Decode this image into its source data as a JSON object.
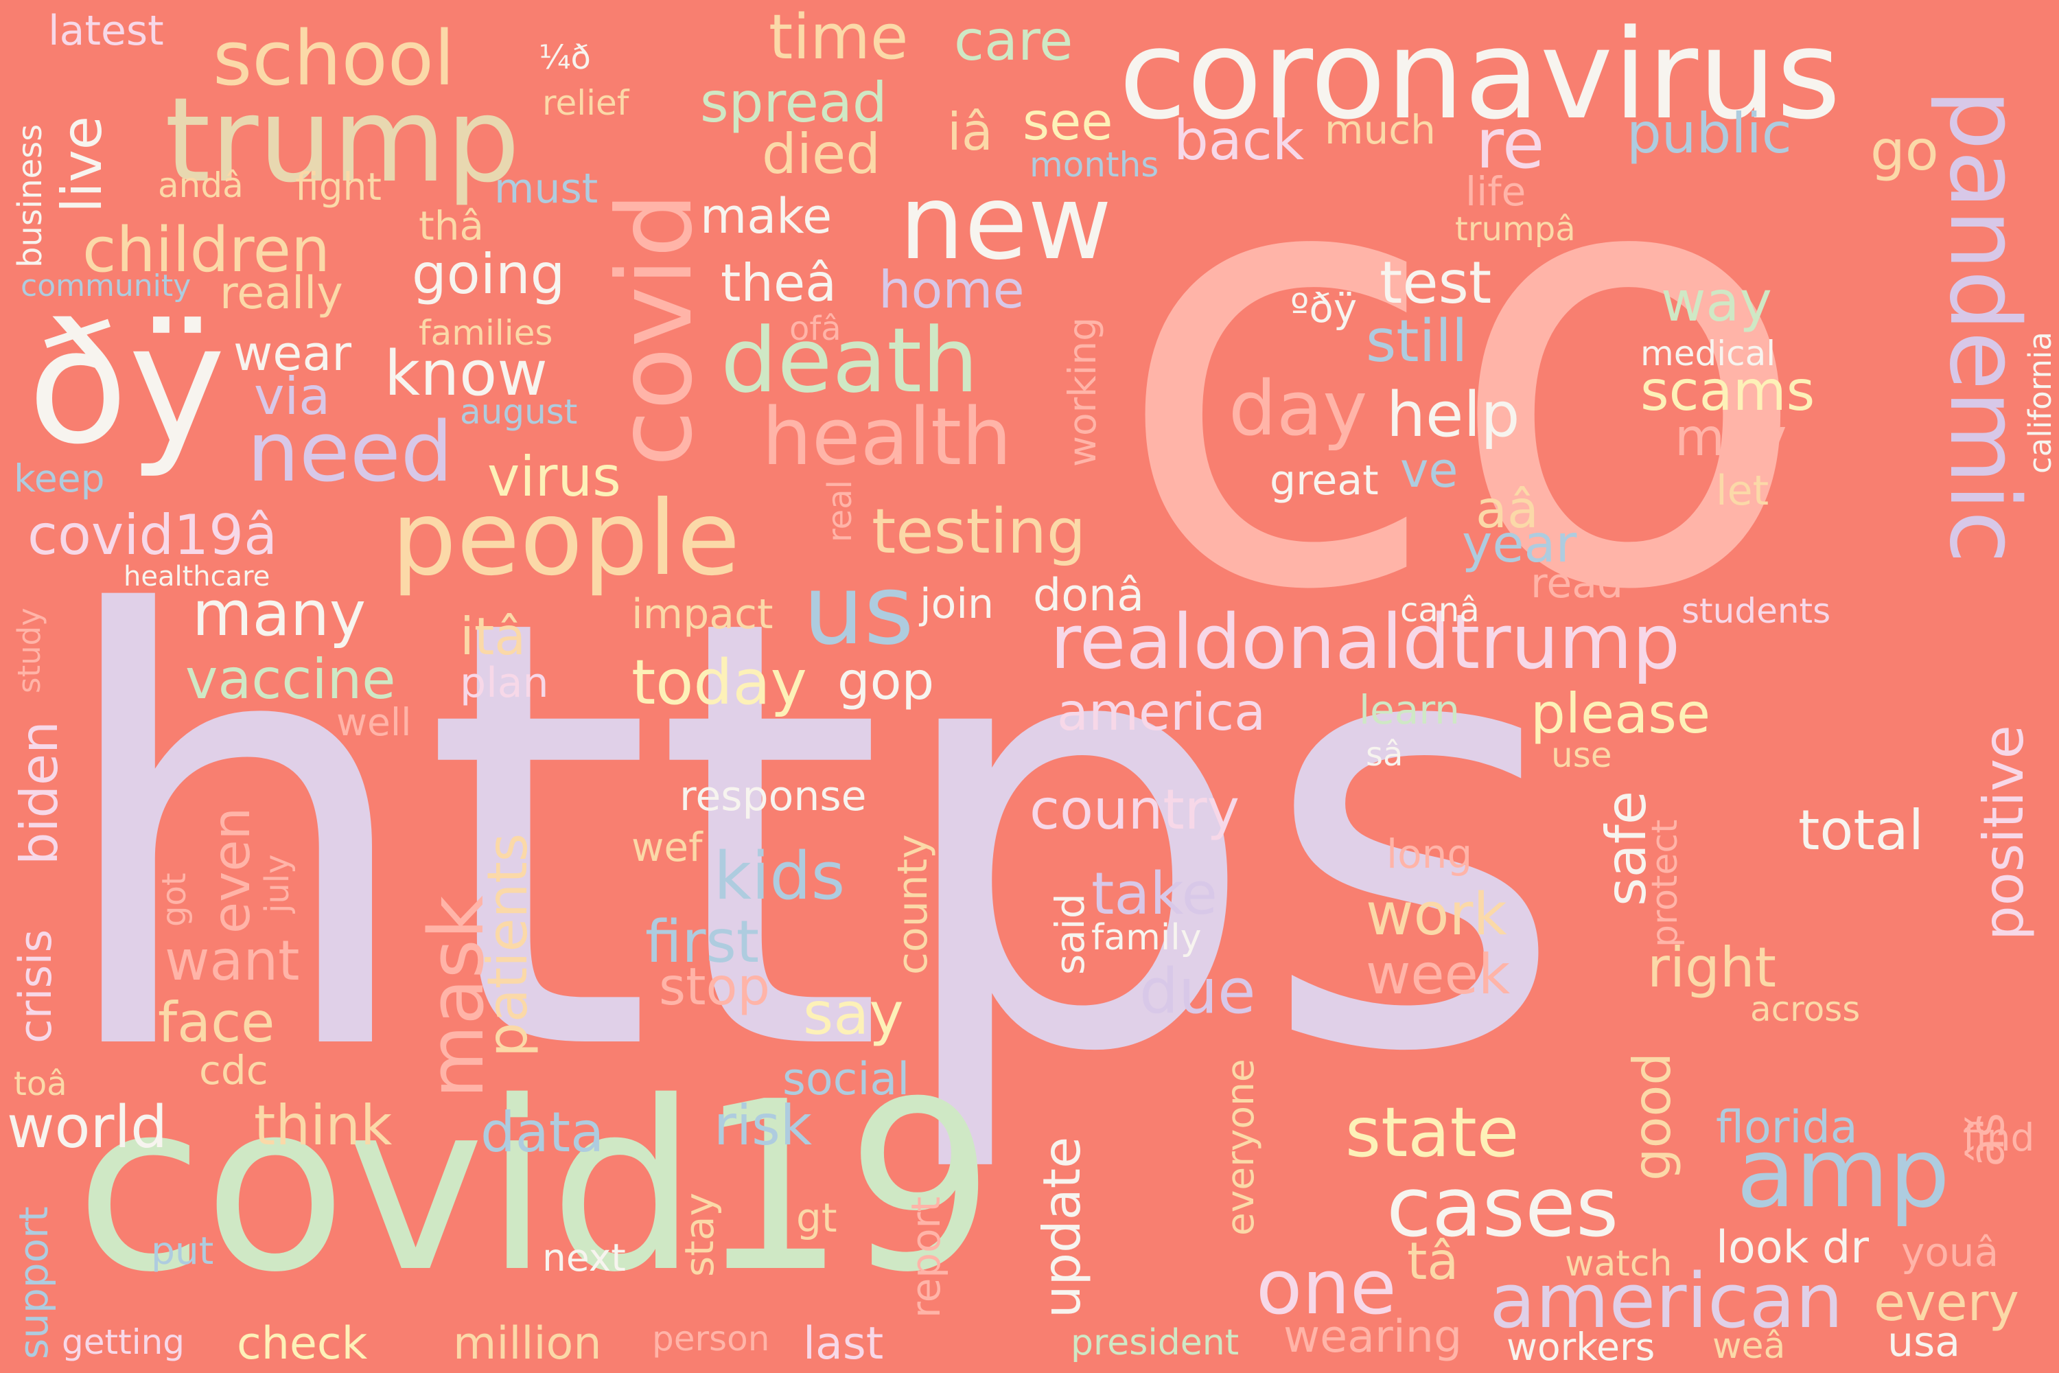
{
  "words": [
    {
      "text": "https",
      "color": "#e0d0e8"
    },
    {
      "text": "co",
      "color": "#ffb4a8"
    },
    {
      "text": "covid19",
      "color": "#cfe8c5"
    },
    {
      "text": "coronavirus",
      "color": "#f7f4ef"
    },
    {
      "text": "ðÿ",
      "color": "#f7f4ef"
    },
    {
      "text": "trump",
      "color": "#e8d8b0"
    },
    {
      "text": "school",
      "color": "#fbd9a8"
    },
    {
      "text": "new",
      "color": "#f7f4ef"
    },
    {
      "text": "covid",
      "color": "#ffb4a8"
    },
    {
      "text": "people",
      "color": "#fbd9a8"
    },
    {
      "text": "death",
      "color": "#cfe8c5"
    },
    {
      "text": "health",
      "color": "#ffb4a8"
    },
    {
      "text": "pandemic",
      "color": "#d8c8e8"
    },
    {
      "text": "realdonaldtrump",
      "color": "#f7d8e8"
    },
    {
      "text": "us",
      "color": "#aeccdf"
    },
    {
      "text": "amp",
      "color": "#aeccdf"
    },
    {
      "text": "cases",
      "color": "#f7f4ef"
    },
    {
      "text": "american",
      "color": "#e0d0e8"
    },
    {
      "text": "mask",
      "color": "#ffb4a8"
    },
    {
      "text": "need",
      "color": "#d8c8e8"
    },
    {
      "text": "children",
      "color": "#fbd9a8"
    },
    {
      "text": "many",
      "color": "#f7f4ef"
    },
    {
      "text": "vaccine",
      "color": "#cfe8c5"
    },
    {
      "text": "world",
      "color": "#f7f4ef"
    },
    {
      "text": "testing",
      "color": "#fbd9a8"
    },
    {
      "text": "today",
      "color": "#fdf1b8"
    },
    {
      "text": "know",
      "color": "#f7f4ef"
    },
    {
      "text": "kids",
      "color": "#aeccdf"
    },
    {
      "text": "state",
      "color": "#fdf1b8"
    },
    {
      "text": "one",
      "color": "#f7d8e8"
    },
    {
      "text": "covid19â",
      "color": "#f7d8e8"
    },
    {
      "text": "going",
      "color": "#f7f4ef"
    },
    {
      "text": "time",
      "color": "#fbd9a8"
    },
    {
      "text": "care",
      "color": "#cfe8c5"
    },
    {
      "text": "spread",
      "color": "#cfe8c5"
    },
    {
      "text": "died",
      "color": "#fbd9a8"
    },
    {
      "text": "iâ",
      "color": "#fbd9a8"
    },
    {
      "text": "see",
      "color": "#fdf1b8"
    },
    {
      "text": "back",
      "color": "#f7d8e8"
    },
    {
      "text": "much",
      "color": "#fbd9a8"
    },
    {
      "text": "re",
      "color": "#f7d8e8"
    },
    {
      "text": "public",
      "color": "#aeccdf"
    },
    {
      "text": "go",
      "color": "#fbd9a8"
    },
    {
      "text": "latest",
      "color": "#f7d8e8"
    },
    {
      "text": "¼ð",
      "color": "#f7f4ef"
    },
    {
      "text": "relief",
      "color": "#fbd9a8"
    },
    {
      "text": "live",
      "color": "#f7f4ef"
    },
    {
      "text": "andâ",
      "color": "#fbd9a8"
    },
    {
      "text": "fight",
      "color": "#fbd9a8"
    },
    {
      "text": "must",
      "color": "#aeccdf"
    },
    {
      "text": "months",
      "color": "#aeccdf"
    },
    {
      "text": "thâ",
      "color": "#fbd9a8"
    },
    {
      "text": "make",
      "color": "#f7f4ef"
    },
    {
      "text": "theâ",
      "color": "#f7f4ef"
    },
    {
      "text": "home",
      "color": "#d8c8e8"
    },
    {
      "text": "life",
      "color": "#ffb4a8"
    },
    {
      "text": "trumpâ",
      "color": "#fbd9a8"
    },
    {
      "text": "test",
      "color": "#f7f4ef"
    },
    {
      "text": "way",
      "color": "#cfe8c5"
    },
    {
      "text": "ºðÿ",
      "color": "#f7f4ef"
    },
    {
      "text": "still",
      "color": "#aeccdf"
    },
    {
      "text": "medical",
      "color": "#f7f4ef"
    },
    {
      "text": "scams",
      "color": "#fdf1b8"
    },
    {
      "text": "day",
      "color": "#ffb4a8"
    },
    {
      "text": "help",
      "color": "#f7f4ef"
    },
    {
      "text": "may",
      "color": "#ffb4a8"
    },
    {
      "text": "let",
      "color": "#fbd9a8"
    },
    {
      "text": "great",
      "color": "#f7f4ef"
    },
    {
      "text": "ve",
      "color": "#aeccdf"
    },
    {
      "text": "aâ",
      "color": "#fbd9a8"
    },
    {
      "text": "year",
      "color": "#aeccdf"
    },
    {
      "text": "read",
      "color": "#ffb4a8"
    },
    {
      "text": "business",
      "color": "#f7f4ef"
    },
    {
      "text": "community",
      "color": "#aeccdf"
    },
    {
      "text": "really",
      "color": "#fbd9a8"
    },
    {
      "text": "families",
      "color": "#fbd9a8"
    },
    {
      "text": "ofâ",
      "color": "#ffb4a8"
    },
    {
      "text": "working",
      "color": "#ffb4a8"
    },
    {
      "text": "wear",
      "color": "#f7f4ef"
    },
    {
      "text": "via",
      "color": "#d8c8e8"
    },
    {
      "text": "august",
      "color": "#aeccdf"
    },
    {
      "text": "keep",
      "color": "#aeccdf"
    },
    {
      "text": "virus",
      "color": "#fdf1b8"
    },
    {
      "text": "healthcare",
      "color": "#f7f4ef"
    },
    {
      "text": "real",
      "color": "#ffb4a8"
    },
    {
      "text": "itâ",
      "color": "#fbd9a8"
    },
    {
      "text": "impact",
      "color": "#fbd9a8"
    },
    {
      "text": "join",
      "color": "#f7f4ef"
    },
    {
      "text": "donâ",
      "color": "#f7f4ef"
    },
    {
      "text": "canâ",
      "color": "#f7f4ef"
    },
    {
      "text": "students",
      "color": "#f7d8e8"
    },
    {
      "text": "study",
      "color": "#ffb4a8"
    },
    {
      "text": "plan",
      "color": "#f7d8e8"
    },
    {
      "text": "gop",
      "color": "#f7f4ef"
    },
    {
      "text": "america",
      "color": "#f7d8e8"
    },
    {
      "text": "learn",
      "color": "#cfe8c5"
    },
    {
      "text": "please",
      "color": "#fdf1b8"
    },
    {
      "text": "well",
      "color": "#ffb4a8"
    },
    {
      "text": "sâ",
      "color": "#f7f4ef"
    },
    {
      "text": "use",
      "color": "#fbd9a8"
    },
    {
      "text": "positive",
      "color": "#f7d8e8"
    },
    {
      "text": "california",
      "color": "#f7f4ef"
    },
    {
      "text": "biden",
      "color": "#f7d8e8"
    },
    {
      "text": "response",
      "color": "#f7f4ef"
    },
    {
      "text": "country",
      "color": "#f7d8e8"
    },
    {
      "text": "total",
      "color": "#f7f4ef"
    },
    {
      "text": "wef",
      "color": "#fbd9a8"
    },
    {
      "text": "long",
      "color": "#ffb4a8"
    },
    {
      "text": "even",
      "color": "#ffb4a8"
    },
    {
      "text": "july",
      "color": "#ffb4a8"
    },
    {
      "text": "patients",
      "color": "#fbd9a8"
    },
    {
      "text": "county",
      "color": "#fbd9a8"
    },
    {
      "text": "take",
      "color": "#d8c8e8"
    },
    {
      "text": "safe",
      "color": "#f7f4ef"
    },
    {
      "text": "protect",
      "color": "#ffb4a8"
    },
    {
      "text": "first",
      "color": "#aeccdf"
    },
    {
      "text": "said",
      "color": "#f7f4ef"
    },
    {
      "text": "family",
      "color": "#f7f4ef"
    },
    {
      "text": "work",
      "color": "#fbd9a8"
    },
    {
      "text": "got",
      "color": "#ffb4a8"
    },
    {
      "text": "want",
      "color": "#ffb4a8"
    },
    {
      "text": "stop",
      "color": "#ffb4a8"
    },
    {
      "text": "right",
      "color": "#fbd9a8"
    },
    {
      "text": "week",
      "color": "#ffb4a8"
    },
    {
      "text": "crisis",
      "color": "#f7d8e8"
    },
    {
      "text": "face",
      "color": "#fbd9a8"
    },
    {
      "text": "say",
      "color": "#fdf1b8"
    },
    {
      "text": "due",
      "color": "#d8c8e8"
    },
    {
      "text": "across",
      "color": "#fbd9a8"
    },
    {
      "text": "cdc",
      "color": "#fbd9a8"
    },
    {
      "text": "social",
      "color": "#aeccdf"
    },
    {
      "text": "toâ",
      "color": "#fbd9a8"
    },
    {
      "text": "good",
      "color": "#fbd9a8"
    },
    {
      "text": "âš",
      "color": "#ffb4a8"
    },
    {
      "text": "think",
      "color": "#fbd9a8"
    },
    {
      "text": "data",
      "color": "#aeccdf"
    },
    {
      "text": "risk",
      "color": "#aeccdf"
    },
    {
      "text": "everyone",
      "color": "#fbd9a8"
    },
    {
      "text": "florida",
      "color": "#aeccdf"
    },
    {
      "text": "find",
      "color": "#ffb4a8"
    },
    {
      "text": "support",
      "color": "#aeccdf"
    },
    {
      "text": "update",
      "color": "#f7f4ef"
    },
    {
      "text": "stay",
      "color": "#fbd9a8"
    },
    {
      "text": "gt",
      "color": "#fbd9a8"
    },
    {
      "text": "report",
      "color": "#ffb4a8"
    },
    {
      "text": "put",
      "color": "#aeccdf"
    },
    {
      "text": "next",
      "color": "#f7f4ef"
    },
    {
      "text": "tâ",
      "color": "#fbd9a8"
    },
    {
      "text": "look",
      "color": "#f7f4ef"
    },
    {
      "text": "dr",
      "color": "#f7f4ef"
    },
    {
      "text": "youâ",
      "color": "#ffb4a8"
    },
    {
      "text": "watch",
      "color": "#fbd9a8"
    },
    {
      "text": "every",
      "color": "#fbd9a8"
    },
    {
      "text": "getting",
      "color": "#f7d8e8"
    },
    {
      "text": "check",
      "color": "#fdf1b8"
    },
    {
      "text": "million",
      "color": "#fbd9a8"
    },
    {
      "text": "person",
      "color": "#ffb4a8"
    },
    {
      "text": "last",
      "color": "#f7d8e8"
    },
    {
      "text": "president",
      "color": "#cfe8c5"
    },
    {
      "text": "wearing",
      "color": "#ffb4a8"
    },
    {
      "text": "workers",
      "color": "#f7f4ef"
    },
    {
      "text": "weâ",
      "color": "#fbd9a8"
    },
    {
      "text": "usa",
      "color": "#f7f4ef"
    }
  ]
}
